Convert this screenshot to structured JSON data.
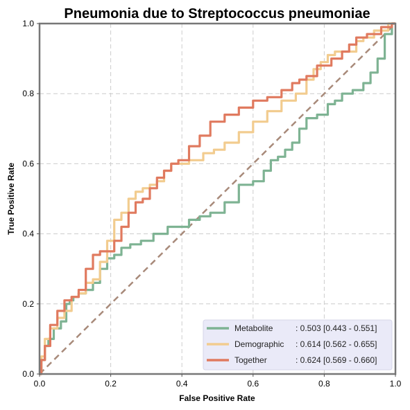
{
  "chart_data": {
    "type": "line",
    "title": "Pneumonia due to Streptococcus pneumoniae",
    "xlabel": "False Positive Rate",
    "ylabel": "True Positive Rate",
    "xlim": [
      0,
      1
    ],
    "ylim": [
      0,
      1
    ],
    "xticks": [
      "0.0",
      "0.2",
      "0.4",
      "0.6",
      "0.8",
      "1.0"
    ],
    "yticks": [
      "0.0",
      "0.2",
      "0.4",
      "0.6",
      "0.8",
      "1.0"
    ],
    "grid": true,
    "legend_position": "bottom-right",
    "diagonal": {
      "x": [
        0,
        1
      ],
      "y": [
        0,
        1
      ],
      "color": "#A88A7A",
      "style": "dashed"
    },
    "series": [
      {
        "name": "Metabolite",
        "label_name": "Metabolite",
        "label_value": ": 0.503 [0.443 - 0.551]",
        "color": "#7EB393",
        "x": [
          0.0,
          0.01,
          0.02,
          0.03,
          0.05,
          0.07,
          0.08,
          0.09,
          0.1,
          0.12,
          0.14,
          0.16,
          0.18,
          0.2,
          0.22,
          0.24,
          0.27,
          0.3,
          0.34,
          0.38,
          0.4,
          0.44,
          0.46,
          0.5,
          0.54,
          0.58,
          0.62,
          0.64,
          0.66,
          0.68,
          0.7,
          0.72,
          0.74,
          0.76,
          0.8,
          0.82,
          0.84,
          0.86,
          0.9,
          0.92,
          0.94,
          0.96,
          0.98,
          1.0
        ],
        "y": [
          0.0,
          0.04,
          0.08,
          0.1,
          0.13,
          0.15,
          0.2,
          0.21,
          0.22,
          0.23,
          0.24,
          0.26,
          0.3,
          0.33,
          0.34,
          0.36,
          0.37,
          0.38,
          0.4,
          0.42,
          0.42,
          0.44,
          0.45,
          0.46,
          0.49,
          0.54,
          0.55,
          0.58,
          0.61,
          0.62,
          0.64,
          0.66,
          0.7,
          0.73,
          0.74,
          0.77,
          0.78,
          0.8,
          0.81,
          0.83,
          0.86,
          0.9,
          0.97,
          1.0
        ]
      },
      {
        "name": "Demographic",
        "label_name": "Demographic",
        "label_value": ": 0.614 [0.562 - 0.655]",
        "color": "#F2CC8F",
        "x": [
          0.0,
          0.01,
          0.02,
          0.04,
          0.06,
          0.08,
          0.1,
          0.12,
          0.14,
          0.16,
          0.18,
          0.2,
          0.22,
          0.24,
          0.26,
          0.28,
          0.3,
          0.32,
          0.34,
          0.36,
          0.38,
          0.4,
          0.44,
          0.48,
          0.5,
          0.54,
          0.58,
          0.62,
          0.66,
          0.7,
          0.74,
          0.76,
          0.78,
          0.8,
          0.82,
          0.84,
          0.88,
          0.9,
          0.92,
          0.96,
          1.0
        ],
        "y": [
          0.0,
          0.05,
          0.1,
          0.13,
          0.16,
          0.18,
          0.22,
          0.23,
          0.26,
          0.27,
          0.32,
          0.38,
          0.44,
          0.46,
          0.5,
          0.52,
          0.53,
          0.54,
          0.55,
          0.58,
          0.6,
          0.6,
          0.61,
          0.63,
          0.64,
          0.66,
          0.69,
          0.72,
          0.75,
          0.78,
          0.8,
          0.84,
          0.87,
          0.89,
          0.91,
          0.92,
          0.92,
          0.95,
          0.96,
          0.98,
          1.0
        ]
      },
      {
        "name": "Together",
        "label_name": "Together",
        "label_value": ": 0.624 [0.569 - 0.660]",
        "color": "#E07A5F",
        "x": [
          0.0,
          0.01,
          0.02,
          0.04,
          0.06,
          0.08,
          0.1,
          0.12,
          0.14,
          0.16,
          0.18,
          0.2,
          0.22,
          0.24,
          0.26,
          0.28,
          0.3,
          0.32,
          0.34,
          0.36,
          0.38,
          0.4,
          0.44,
          0.46,
          0.5,
          0.54,
          0.58,
          0.62,
          0.66,
          0.7,
          0.72,
          0.74,
          0.76,
          0.8,
          0.84,
          0.86,
          0.88,
          0.9,
          0.94,
          0.98,
          1.0
        ],
        "y": [
          0.0,
          0.04,
          0.08,
          0.14,
          0.18,
          0.21,
          0.22,
          0.24,
          0.3,
          0.34,
          0.35,
          0.35,
          0.38,
          0.42,
          0.46,
          0.49,
          0.5,
          0.53,
          0.56,
          0.58,
          0.6,
          0.61,
          0.65,
          0.68,
          0.72,
          0.74,
          0.76,
          0.78,
          0.79,
          0.81,
          0.83,
          0.84,
          0.85,
          0.88,
          0.9,
          0.92,
          0.94,
          0.96,
          0.97,
          0.99,
          1.0
        ]
      }
    ]
  }
}
